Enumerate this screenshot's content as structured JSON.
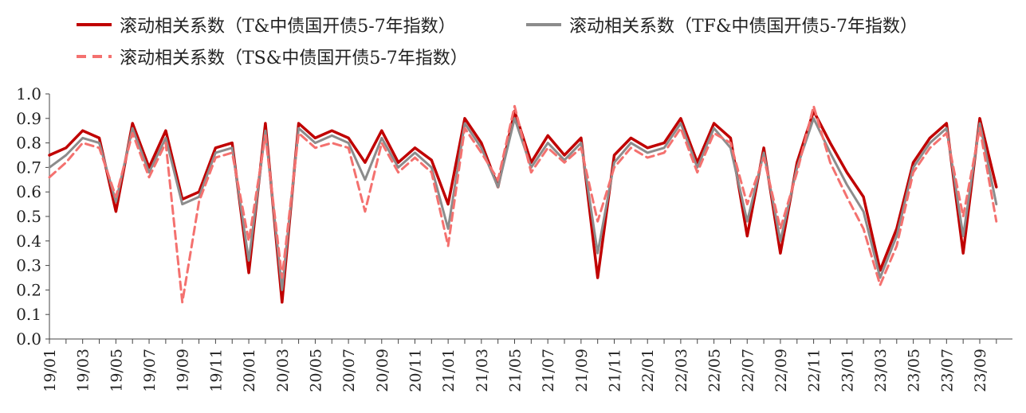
{
  "chart_data": {
    "type": "line",
    "title": "",
    "xlabel": "",
    "ylabel": "",
    "ylim": [
      0.0,
      1.0
    ],
    "y_ticks": [
      "0.0",
      "0.1",
      "0.2",
      "0.3",
      "0.4",
      "0.5",
      "0.6",
      "0.7",
      "0.8",
      "0.9",
      "1.0"
    ],
    "x_tick_labels": [
      "19/01",
      "19/03",
      "19/05",
      "19/07",
      "19/09",
      "19/11",
      "20/01",
      "20/03",
      "20/05",
      "20/07",
      "20/09",
      "20/11",
      "21/01",
      "21/03",
      "21/05",
      "21/07",
      "21/09",
      "21/11",
      "22/01",
      "22/03",
      "22/05",
      "22/07",
      "22/09",
      "22/11",
      "23/01",
      "23/03",
      "23/05",
      "23/07",
      "23/09"
    ],
    "grid": false,
    "legend_position": "top-left",
    "series": [
      {
        "name": "滚动相关系数（T&中债国开债5-7年指数）",
        "color": "#c00000",
        "style": "solid",
        "x": [
          "19/01",
          "19/02",
          "19/03",
          "19/04",
          "19/05",
          "19/06",
          "19/07",
          "19/08",
          "19/09",
          "19/10",
          "19/11",
          "19/12",
          "20/01",
          "20/02",
          "20/03",
          "20/04",
          "20/05",
          "20/06",
          "20/07",
          "20/08",
          "20/09",
          "20/10",
          "20/11",
          "20/12",
          "21/01",
          "21/02",
          "21/03",
          "21/04",
          "21/05",
          "21/06",
          "21/07",
          "21/08",
          "21/09",
          "21/10",
          "21/11",
          "21/12",
          "22/01",
          "22/02",
          "22/03",
          "22/04",
          "22/05",
          "22/06",
          "22/07",
          "22/08",
          "22/09",
          "22/10",
          "22/11",
          "22/12",
          "23/01",
          "23/02",
          "23/03",
          "23/04",
          "23/05",
          "23/06",
          "23/07",
          "23/08",
          "23/09",
          "23/10"
        ],
        "values": [
          0.75,
          0.78,
          0.85,
          0.82,
          0.52,
          0.88,
          0.7,
          0.85,
          0.57,
          0.6,
          0.78,
          0.8,
          0.27,
          0.88,
          0.15,
          0.88,
          0.82,
          0.85,
          0.82,
          0.72,
          0.85,
          0.72,
          0.78,
          0.73,
          0.55,
          0.9,
          0.8,
          0.62,
          0.93,
          0.72,
          0.83,
          0.75,
          0.82,
          0.25,
          0.75,
          0.82,
          0.78,
          0.8,
          0.9,
          0.72,
          0.88,
          0.82,
          0.42,
          0.78,
          0.35,
          0.72,
          0.93,
          0.8,
          0.68,
          0.58,
          0.28,
          0.45,
          0.72,
          0.82,
          0.88,
          0.35,
          0.9,
          0.62
        ]
      },
      {
        "name": "滚动相关系数（TF&中债国开债5-7年指数）",
        "color": "#8c8c8c",
        "style": "solid",
        "x": [
          "19/01",
          "19/02",
          "19/03",
          "19/04",
          "19/05",
          "19/06",
          "19/07",
          "19/08",
          "19/09",
          "19/10",
          "19/11",
          "19/12",
          "20/01",
          "20/02",
          "20/03",
          "20/04",
          "20/05",
          "20/06",
          "20/07",
          "20/08",
          "20/09",
          "20/10",
          "20/11",
          "20/12",
          "21/01",
          "21/02",
          "21/03",
          "21/04",
          "21/05",
          "21/06",
          "21/07",
          "21/08",
          "21/09",
          "21/10",
          "21/11",
          "21/12",
          "22/01",
          "22/02",
          "22/03",
          "22/04",
          "22/05",
          "22/06",
          "22/07",
          "22/08",
          "22/09",
          "22/10",
          "22/11",
          "22/12",
          "23/01",
          "23/02",
          "23/03",
          "23/04",
          "23/05",
          "23/06",
          "23/07",
          "23/08",
          "23/09",
          "23/10"
        ],
        "values": [
          0.7,
          0.75,
          0.82,
          0.8,
          0.56,
          0.86,
          0.68,
          0.82,
          0.55,
          0.58,
          0.76,
          0.78,
          0.32,
          0.85,
          0.2,
          0.86,
          0.8,
          0.83,
          0.8,
          0.65,
          0.82,
          0.7,
          0.76,
          0.7,
          0.45,
          0.88,
          0.78,
          0.62,
          0.9,
          0.7,
          0.8,
          0.73,
          0.8,
          0.35,
          0.72,
          0.8,
          0.76,
          0.78,
          0.88,
          0.7,
          0.86,
          0.78,
          0.48,
          0.76,
          0.4,
          0.7,
          0.9,
          0.76,
          0.63,
          0.52,
          0.25,
          0.42,
          0.7,
          0.8,
          0.86,
          0.42,
          0.88,
          0.55
        ]
      },
      {
        "name": "滚动相关系数（TS&中债国开债5-7年指数）",
        "color": "#f4716f",
        "style": "dashed",
        "x": [
          "19/01",
          "19/02",
          "19/03",
          "19/04",
          "19/05",
          "19/06",
          "19/07",
          "19/08",
          "19/09",
          "19/10",
          "19/11",
          "19/12",
          "20/01",
          "20/02",
          "20/03",
          "20/04",
          "20/05",
          "20/06",
          "20/07",
          "20/08",
          "20/09",
          "20/10",
          "20/11",
          "20/12",
          "21/01",
          "21/02",
          "21/03",
          "21/04",
          "21/05",
          "21/06",
          "21/07",
          "21/08",
          "21/09",
          "21/10",
          "21/11",
          "21/12",
          "22/01",
          "22/02",
          "22/03",
          "22/04",
          "22/05",
          "22/06",
          "22/07",
          "22/08",
          "22/09",
          "22/10",
          "22/11",
          "22/12",
          "23/01",
          "23/02",
          "23/03",
          "23/04",
          "23/05",
          "23/06",
          "23/07",
          "23/08",
          "23/09",
          "23/10"
        ],
        "values": [
          0.66,
          0.72,
          0.8,
          0.78,
          0.58,
          0.84,
          0.66,
          0.8,
          0.15,
          0.56,
          0.74,
          0.76,
          0.4,
          0.83,
          0.25,
          0.84,
          0.78,
          0.8,
          0.78,
          0.52,
          0.8,
          0.68,
          0.74,
          0.68,
          0.38,
          0.86,
          0.76,
          0.65,
          0.95,
          0.68,
          0.78,
          0.72,
          0.78,
          0.48,
          0.7,
          0.78,
          0.74,
          0.76,
          0.86,
          0.68,
          0.84,
          0.8,
          0.55,
          0.74,
          0.45,
          0.68,
          0.95,
          0.72,
          0.58,
          0.45,
          0.22,
          0.38,
          0.68,
          0.78,
          0.84,
          0.5,
          0.86,
          0.48
        ]
      }
    ]
  }
}
